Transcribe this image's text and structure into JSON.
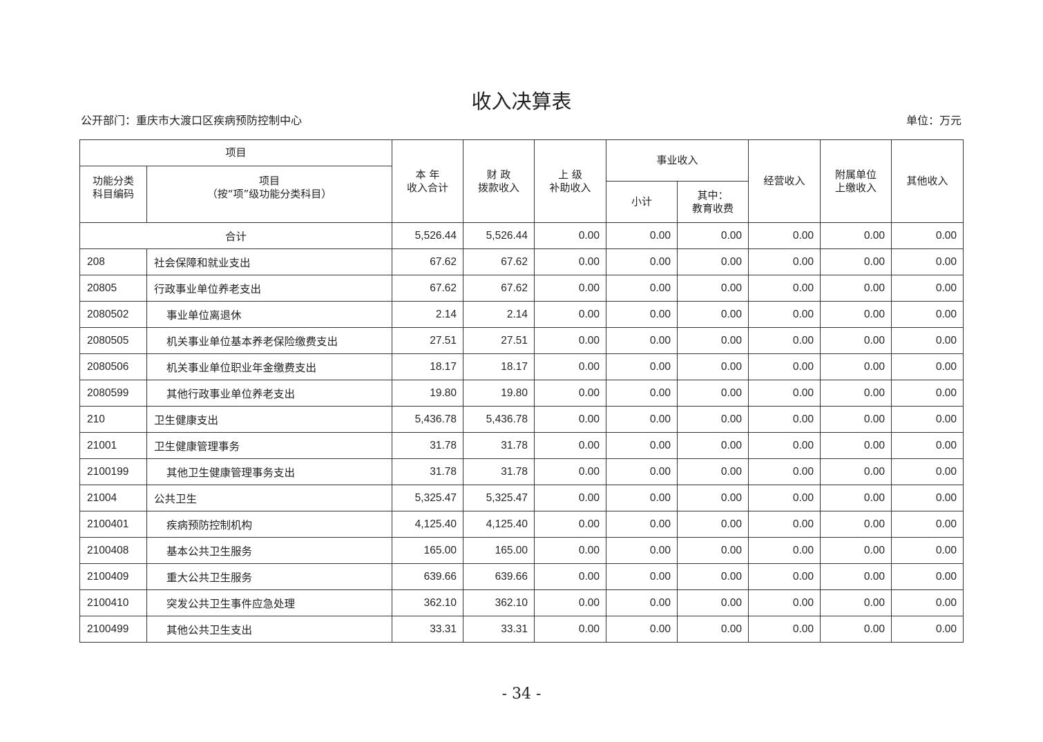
{
  "title": "收入决算表",
  "department": "公开部门：重庆市大渡口区疾病预防控制中心",
  "unit": "单位：万元",
  "headers": {
    "item_group": "项目",
    "code": "功能分类\n科目编码",
    "item": "项目\n（按“项”级功能分类科目）",
    "total": "本 年\n收入合计",
    "fiscal": "财 政\n拨款收入",
    "superior": "上 级\n补助收入",
    "business_group": "事业收入",
    "subtotal": "小计",
    "education": "其中：\n教育收费",
    "operating": "经营收入",
    "affiliated": "附属单位\n上缴收入",
    "other": "其他收入"
  },
  "total_row": {
    "label": "合计",
    "values": [
      "5,526.44",
      "5,526.44",
      "0.00",
      "0.00",
      "0.00",
      "0.00",
      "0.00",
      "0.00"
    ]
  },
  "rows": [
    {
      "code": "208",
      "name": "社会保障和就业支出",
      "indent": false,
      "values": [
        "67.62",
        "67.62",
        "0.00",
        "0.00",
        "0.00",
        "0.00",
        "0.00",
        "0.00"
      ]
    },
    {
      "code": "20805",
      "name": "行政事业单位养老支出",
      "indent": false,
      "values": [
        "67.62",
        "67.62",
        "0.00",
        "0.00",
        "0.00",
        "0.00",
        "0.00",
        "0.00"
      ]
    },
    {
      "code": "2080502",
      "name": "事业单位离退休",
      "indent": true,
      "values": [
        "2.14",
        "2.14",
        "0.00",
        "0.00",
        "0.00",
        "0.00",
        "0.00",
        "0.00"
      ]
    },
    {
      "code": "2080505",
      "name": "机关事业单位基本养老保险缴费支出",
      "indent": true,
      "values": [
        "27.51",
        "27.51",
        "0.00",
        "0.00",
        "0.00",
        "0.00",
        "0.00",
        "0.00"
      ]
    },
    {
      "code": "2080506",
      "name": "机关事业单位职业年金缴费支出",
      "indent": true,
      "values": [
        "18.17",
        "18.17",
        "0.00",
        "0.00",
        "0.00",
        "0.00",
        "0.00",
        "0.00"
      ]
    },
    {
      "code": "2080599",
      "name": "其他行政事业单位养老支出",
      "indent": true,
      "values": [
        "19.80",
        "19.80",
        "0.00",
        "0.00",
        "0.00",
        "0.00",
        "0.00",
        "0.00"
      ]
    },
    {
      "code": "210",
      "name": "卫生健康支出",
      "indent": false,
      "values": [
        "5,436.78",
        "5,436.78",
        "0.00",
        "0.00",
        "0.00",
        "0.00",
        "0.00",
        "0.00"
      ]
    },
    {
      "code": "21001",
      "name": "卫生健康管理事务",
      "indent": false,
      "values": [
        "31.78",
        "31.78",
        "0.00",
        "0.00",
        "0.00",
        "0.00",
        "0.00",
        "0.00"
      ]
    },
    {
      "code": "2100199",
      "name": "其他卫生健康管理事务支出",
      "indent": true,
      "values": [
        "31.78",
        "31.78",
        "0.00",
        "0.00",
        "0.00",
        "0.00",
        "0.00",
        "0.00"
      ]
    },
    {
      "code": "21004",
      "name": "公共卫生",
      "indent": false,
      "values": [
        "5,325.47",
        "5,325.47",
        "0.00",
        "0.00",
        "0.00",
        "0.00",
        "0.00",
        "0.00"
      ]
    },
    {
      "code": "2100401",
      "name": "疾病预防控制机构",
      "indent": true,
      "values": [
        "4,125.40",
        "4,125.40",
        "0.00",
        "0.00",
        "0.00",
        "0.00",
        "0.00",
        "0.00"
      ]
    },
    {
      "code": "2100408",
      "name": "基本公共卫生服务",
      "indent": true,
      "values": [
        "165.00",
        "165.00",
        "0.00",
        "0.00",
        "0.00",
        "0.00",
        "0.00",
        "0.00"
      ]
    },
    {
      "code": "2100409",
      "name": "重大公共卫生服务",
      "indent": true,
      "values": [
        "639.66",
        "639.66",
        "0.00",
        "0.00",
        "0.00",
        "0.00",
        "0.00",
        "0.00"
      ]
    },
    {
      "code": "2100410",
      "name": "突发公共卫生事件应急处理",
      "indent": true,
      "values": [
        "362.10",
        "362.10",
        "0.00",
        "0.00",
        "0.00",
        "0.00",
        "0.00",
        "0.00"
      ]
    },
    {
      "code": "2100499",
      "name": "其他公共卫生支出",
      "indent": true,
      "values": [
        "33.31",
        "33.31",
        "0.00",
        "0.00",
        "0.00",
        "0.00",
        "0.00",
        "0.00"
      ]
    }
  ],
  "page_number": "- 34 -"
}
